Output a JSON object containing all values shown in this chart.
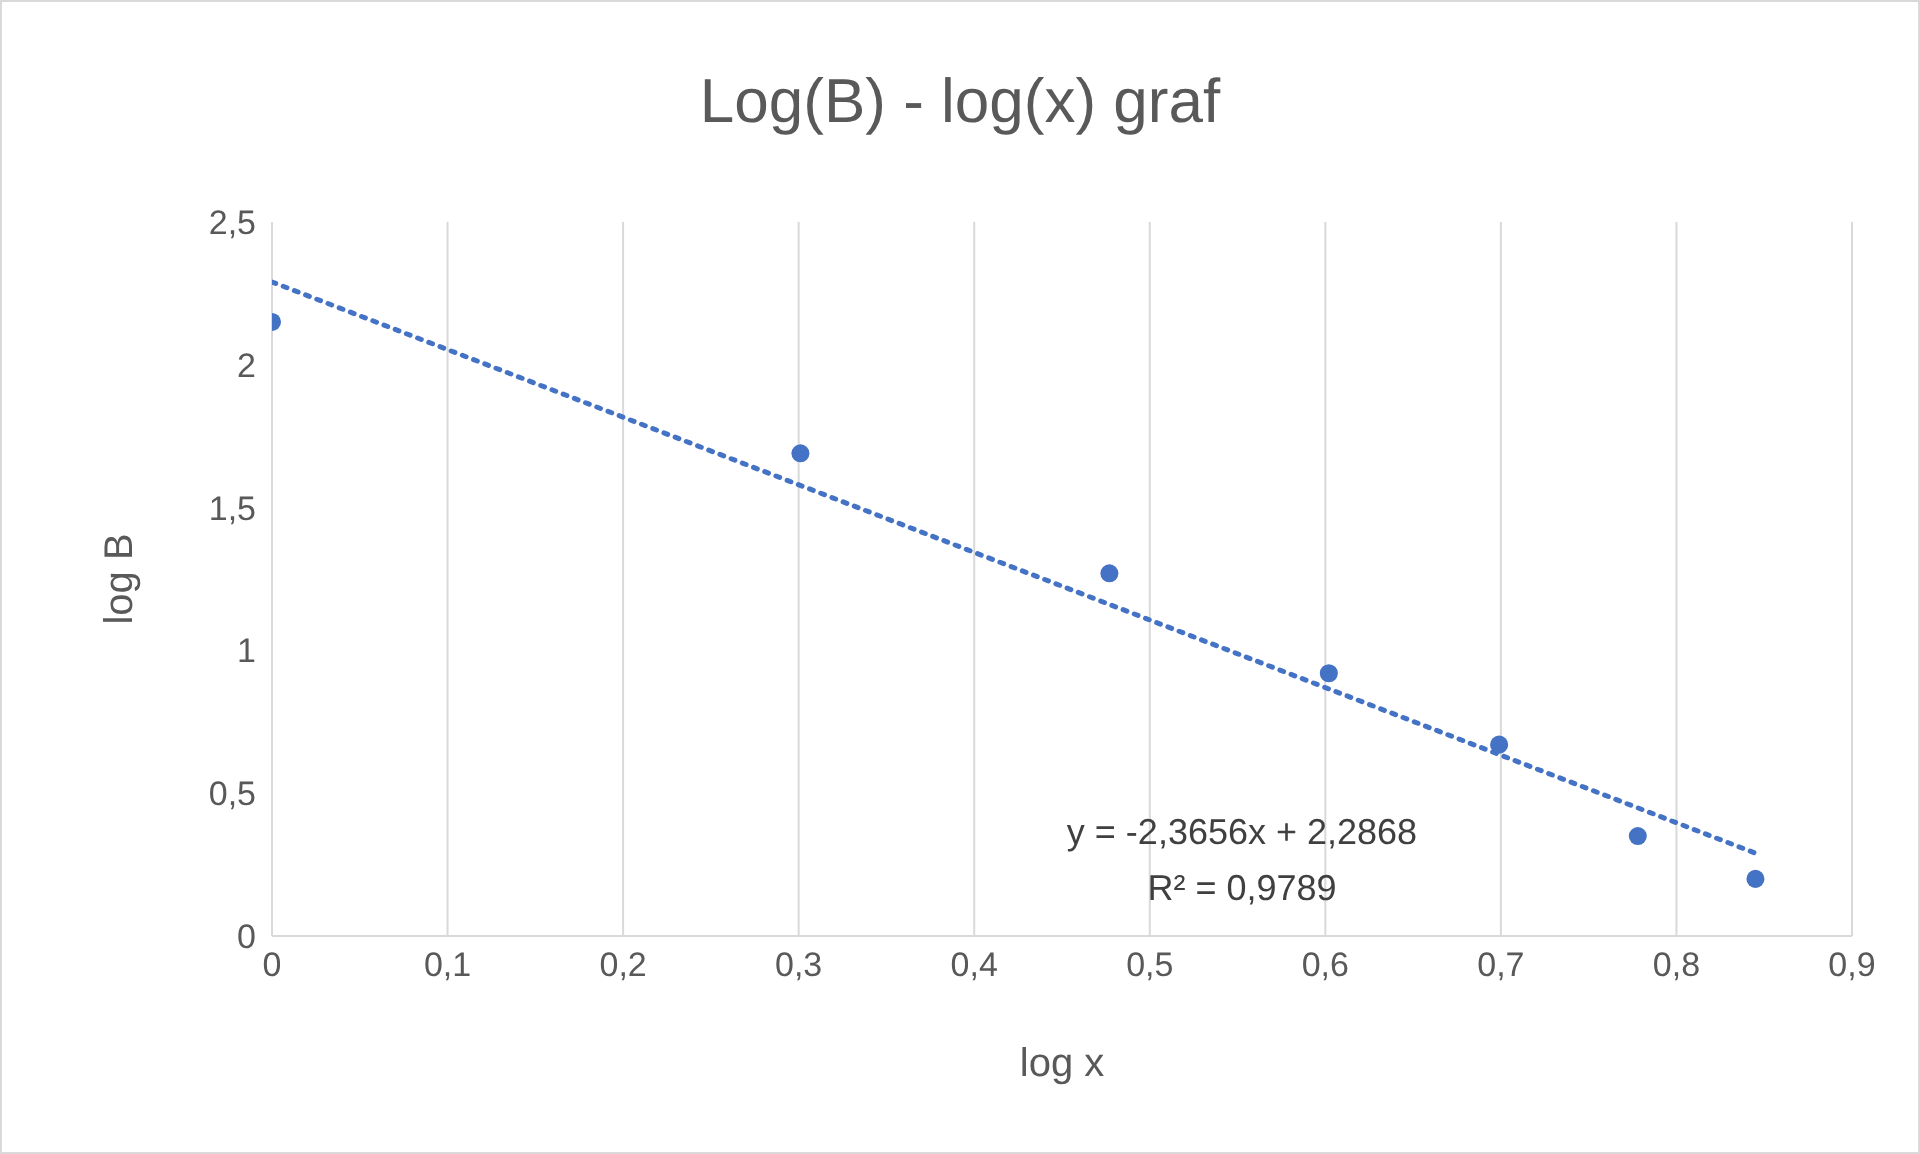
{
  "chart_data": {
    "type": "scatter",
    "title": "Log(B) - log(x) graf",
    "xlabel": "log x",
    "ylabel": "log B",
    "x": [
      0,
      0.301,
      0.477,
      0.602,
      0.699,
      0.778,
      0.845
    ],
    "series": [
      {
        "color": "#4472c4",
        "marker": "circle",
        "values": [
          2.15,
          1.69,
          1.27,
          0.92,
          0.67,
          0.35,
          0.2
        ]
      },
      {
        "type": "line",
        "color": "#4472c4",
        "line_style": "dotted",
        "marker": "none",
        "x": [
          0,
          0.845
        ],
        "values": [
          2.29,
          0.29
        ]
      }
    ],
    "xlim": [
      0,
      0.9
    ],
    "xticks": [
      0,
      {
        "value": 0.1,
        "label": "0,1"
      },
      {
        "value": 0.2,
        "label": "0,2"
      },
      {
        "value": 0.3,
        "label": "0,3"
      },
      {
        "value": 0.4,
        "label": "0,4"
      },
      {
        "value": 0.5,
        "label": "0,5"
      },
      {
        "value": 0.6,
        "label": "0,6"
      },
      {
        "value": 0.7,
        "label": "0,7"
      },
      {
        "value": 0.8,
        "label": "0,8"
      },
      {
        "value": 0.9,
        "label": "0,9"
      }
    ],
    "ylim": [
      0,
      2.5
    ],
    "yticks": [
      0,
      {
        "value": 0.5,
        "label": "0,5"
      },
      1,
      {
        "value": 1.5,
        "label": "1,5"
      },
      2,
      {
        "value": 2.5,
        "label": "2,5"
      }
    ],
    "grid": true,
    "annotations": [
      "y = -2,3656x + 2,2868",
      "R² = 0,9789"
    ]
  }
}
